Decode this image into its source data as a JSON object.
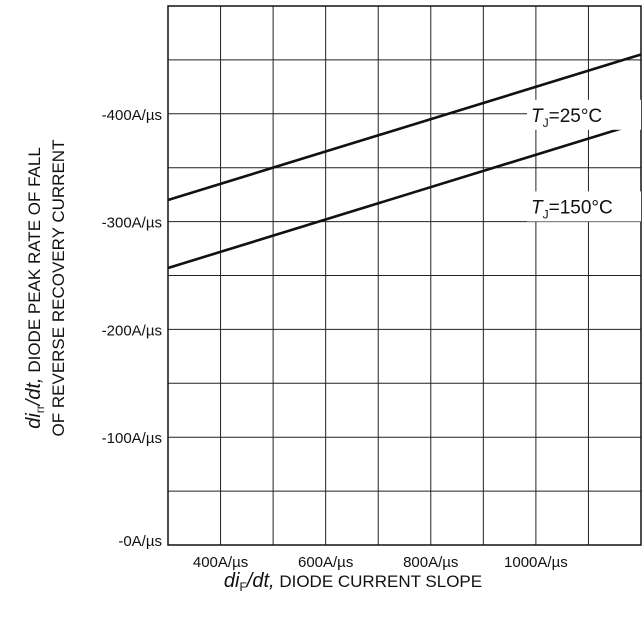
{
  "chart_data": {
    "type": "line",
    "xlabel": {
      "var": "di",
      "sub": "F",
      "slash": "/dt,",
      "text": " DIODE CURRENT SLOPE"
    },
    "ylabel": {
      "line1_var": "di",
      "line1_sub": "rr",
      "line1_slash": "/dt,",
      "line1_text": " DIODE PEAK RATE OF FALL",
      "line2_text": "OF REVERSE RECOVERY CURRENT"
    },
    "x_unit": "A/µs",
    "y_unit": "A/µs",
    "xlim": [
      300,
      1200
    ],
    "ylim": [
      0,
      500
    ],
    "x_ticks": [
      400,
      600,
      800,
      1000
    ],
    "y_ticks": [
      0,
      100,
      200,
      300,
      400
    ],
    "x_tick_labels": [
      "400A/µs",
      "600A/µs",
      "800A/µs",
      "1000A/µs"
    ],
    "y_tick_labels": [
      "-0A/µs",
      "-100A/µs",
      "-200A/µs",
      "-300A/µs",
      "-400A/µs"
    ],
    "grid": true,
    "series": [
      {
        "name": "TJ=25°C",
        "label_var": "T",
        "label_sub": "J",
        "label_rest": "=25°C",
        "x": [
          300,
          1200
        ],
        "y": [
          320,
          455
        ]
      },
      {
        "name": "TJ=150°C",
        "label_var": "T",
        "label_sub": "J",
        "label_rest": "=150°C",
        "x": [
          300,
          1200
        ],
        "y": [
          257,
          392
        ]
      }
    ]
  }
}
